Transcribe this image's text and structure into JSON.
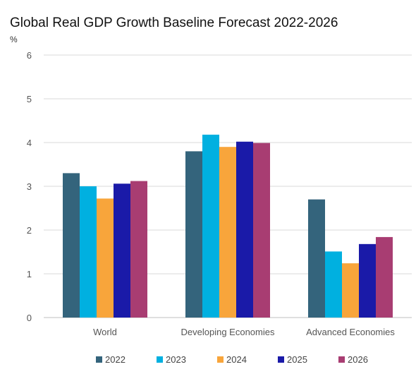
{
  "chart_data": {
    "type": "bar",
    "title": "Global Real GDP Growth Baseline Forecast 2022-2026",
    "ylabel": "%",
    "xlabel": "",
    "categories": [
      "World",
      "Developing Economies",
      "Advanced Economies"
    ],
    "ylim": [
      0,
      6
    ],
    "yticks": [
      0,
      1,
      2,
      3,
      4,
      5,
      6
    ],
    "grid": true,
    "legend_position": "bottom",
    "series": [
      {
        "name": "2022",
        "color": "#34647c",
        "values": [
          3.3,
          3.8,
          2.7
        ]
      },
      {
        "name": "2023",
        "color": "#00b0e0",
        "values": [
          3.0,
          4.18,
          1.51
        ]
      },
      {
        "name": "2024",
        "color": "#f8a53b",
        "values": [
          2.72,
          3.9,
          1.24
        ]
      },
      {
        "name": "2025",
        "color": "#1a1aa8",
        "values": [
          3.06,
          4.02,
          1.68
        ]
      },
      {
        "name": "2026",
        "color": "#a83d72",
        "values": [
          3.12,
          3.99,
          1.84
        ]
      }
    ]
  }
}
